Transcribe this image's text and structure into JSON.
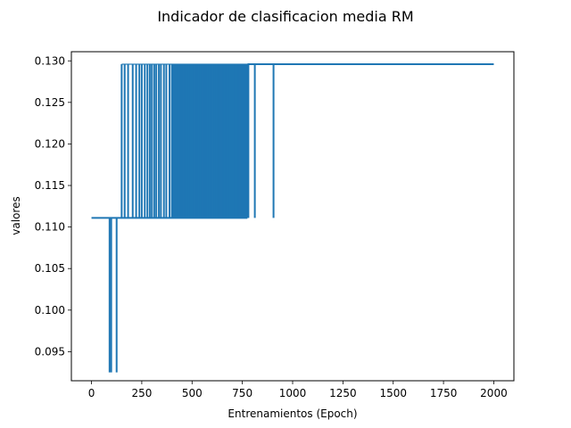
{
  "chart_data": {
    "type": "line",
    "title": "Indicador de clasificacion media RM",
    "xlabel": "Entrenamientos (Epoch)",
    "ylabel": "valores",
    "xlim": [
      -100,
      2100
    ],
    "ylim": [
      0.0915,
      0.1311
    ],
    "xticks": [
      0,
      250,
      500,
      750,
      1000,
      1250,
      1500,
      1750,
      2000
    ],
    "yticks": [
      0.095,
      0.1,
      0.105,
      0.11,
      0.115,
      0.12,
      0.125,
      0.13
    ],
    "xtick_labels": [
      "0",
      "250",
      "500",
      "750",
      "1000",
      "1250",
      "1500",
      "1750",
      "2000"
    ],
    "ytick_labels": [
      "0.095",
      "0.100",
      "0.105",
      "0.110",
      "0.115",
      "0.120",
      "0.125",
      "0.130"
    ],
    "grid": false,
    "series": [
      {
        "color": "#1f77b4",
        "levels": {
          "low": 0.0925,
          "base": 0.1111,
          "high": 0.1296
        },
        "x_range": [
          0,
          2000
        ],
        "low_spikes": [
          90,
          98,
          125
        ],
        "high_spikes": [
          150,
          165,
          182,
          205,
          222,
          238,
          250,
          265,
          278,
          290,
          300,
          312,
          322,
          335,
          345,
          360,
          372,
          388,
          400,
          410,
          422,
          432,
          442,
          452,
          468,
          485,
          498,
          510,
          522,
          535,
          548,
          565,
          578,
          592,
          600,
          612,
          622,
          632,
          642,
          650,
          660,
          668,
          676,
          684,
          692,
          700,
          708,
          716,
          724,
          732,
          740,
          748,
          756,
          764,
          772,
          780,
          812,
          905
        ],
        "high_plateau_from": 775
      }
    ]
  }
}
